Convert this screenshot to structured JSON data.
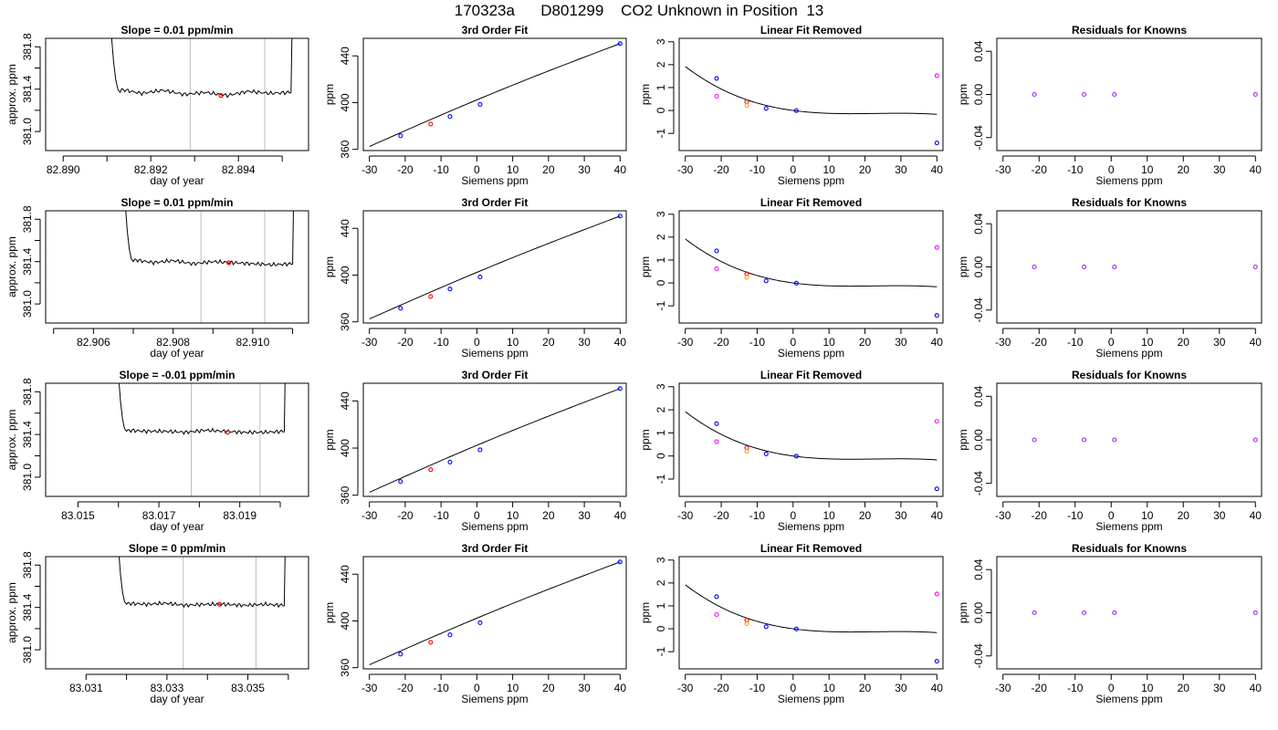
{
  "figure": {
    "title": "170323a      D801299    CO2 Unknown in Position  13"
  },
  "colors": {
    "line": "#000000",
    "vline": "#bebebe",
    "red": "#ff0000",
    "orange": "#ffa500",
    "blue": "#0000ff",
    "magenta": "#ff00ff",
    "purple": "#a020f0"
  },
  "chart_data": [
    {
      "type": "line",
      "title": "Slope =  0.01  ppm/min",
      "xlabel": "day of year",
      "ylabel": "approx. ppm",
      "xlim": [
        82.8896,
        82.8956
      ],
      "ylim": [
        380.82,
        381.88
      ],
      "xticks": [
        "82.890",
        "82.892",
        "82.894"
      ],
      "xminor": [
        82.891,
        82.893,
        82.895
      ],
      "yticks": [
        "381.0",
        "381.4",
        "381.8"
      ],
      "vlines": [
        82.8929,
        82.8946
      ],
      "trace": {
        "start": 82.8909,
        "rise_end": 82.8913,
        "fall_start": 82.8952,
        "end": 82.8953,
        "high": 381.88,
        "base": 381.37,
        "waves": [
          381.4,
          381.36,
          381.39,
          381.35,
          381.37,
          381.34,
          381.38,
          381.36,
          381.37
        ]
      },
      "marker": {
        "x": 82.8936,
        "y": 381.34
      }
    },
    {
      "type": "scatter",
      "title": "3rd Order Fit",
      "xlabel": "Siemens ppm",
      "ylabel": "ppm",
      "xlim": [
        -31.7,
        41.7
      ],
      "ylim": [
        359,
        455
      ],
      "xticks": [
        "-30",
        "-20",
        "-10",
        "0",
        "10",
        "20",
        "30",
        "40"
      ],
      "yticks": [
        "360",
        "400",
        "440"
      ],
      "curve": [
        [
          -30,
          362.5
        ],
        [
          40,
          450.5
        ]
      ],
      "points": [
        {
          "x": -21.3,
          "y": 371.6,
          "color": "blue"
        },
        {
          "x": -12.9,
          "y": 381.7,
          "color": "red"
        },
        {
          "x": -7.5,
          "y": 388.1,
          "color": "blue"
        },
        {
          "x": 0.9,
          "y": 398.5,
          "color": "blue"
        },
        {
          "x": 40.0,
          "y": 450.5,
          "color": "blue"
        }
      ]
    },
    {
      "type": "scatter",
      "title": "Linear Fit Removed",
      "xlabel": "Siemens ppm",
      "ylabel": "ppm",
      "xlim": [
        -31.7,
        41.7
      ],
      "ylim": [
        -1.75,
        3.15
      ],
      "xticks": [
        "-30",
        "-20",
        "-10",
        "0",
        "10",
        "20",
        "30",
        "40"
      ],
      "yticks": [
        "-1",
        "0",
        "1",
        "2",
        "3"
      ],
      "curve_poly": [
        -1.45e-05,
        0.001,
        -0.021,
        0.0
      ],
      "points": [
        {
          "x": -21.3,
          "y": 1.4,
          "color": "blue"
        },
        {
          "x": -21.3,
          "y": 0.62,
          "color": "magenta"
        },
        {
          "x": -12.9,
          "y": 0.38,
          "color": "red"
        },
        {
          "x": -12.9,
          "y": 0.22,
          "color": "orange"
        },
        {
          "x": -7.5,
          "y": 0.09,
          "color": "blue"
        },
        {
          "x": 0.9,
          "y": -0.01,
          "color": "blue"
        },
        {
          "x": 40.0,
          "y": 1.52,
          "color": "magenta"
        },
        {
          "x": 40.0,
          "y": -1.42,
          "color": "blue"
        }
      ]
    },
    {
      "type": "scatter",
      "title": "Residuals for Knowns",
      "xlabel": "Siemens ppm",
      "ylabel": "ppm",
      "xlim": [
        -31.7,
        41.7
      ],
      "ylim": [
        -0.052,
        0.052
      ],
      "xticks": [
        "-30",
        "-20",
        "-10",
        "0",
        "10",
        "20",
        "30",
        "40"
      ],
      "yticks": [
        "-0.04",
        "0.00",
        "0.04"
      ],
      "points": [
        {
          "x": -21.3,
          "y": 0.0,
          "color": "purple"
        },
        {
          "x": -7.5,
          "y": 0.0,
          "color": "purple"
        },
        {
          "x": 0.9,
          "y": 0.0,
          "color": "purple"
        },
        {
          "x": 40.0,
          "y": 0.0,
          "color": "purple"
        }
      ]
    },
    {
      "type": "line",
      "title": "Slope =  0.01  ppm/min",
      "xlabel": "day of year",
      "ylabel": "approx. ppm",
      "xlim": [
        82.9048,
        82.9114
      ],
      "ylim": [
        380.82,
        381.88
      ],
      "xticks": [
        "82.906",
        "82.908",
        "82.910"
      ],
      "xminor": [
        82.905,
        82.907,
        82.909,
        82.911
      ],
      "yticks": [
        "381.0",
        "381.4",
        "381.8"
      ],
      "vlines": [
        82.9087,
        82.9103
      ],
      "trace": {
        "start": 82.9066,
        "rise_end": 82.907,
        "fall_start": 82.911,
        "end": 82.9111,
        "high": 381.88,
        "base": 381.4,
        "waves": [
          381.42,
          381.39,
          381.41,
          381.38,
          381.4,
          381.39,
          381.38,
          381.37,
          381.38
        ]
      },
      "marker": {
        "x": 82.9094,
        "y": 381.39
      }
    },
    {
      "type": "scatter",
      "title": "3rd Order Fit",
      "xlabel": "Siemens ppm",
      "ylabel": "ppm",
      "xlim": [
        -31.7,
        41.7
      ],
      "ylim": [
        359,
        455
      ],
      "xticks": [
        "-30",
        "-20",
        "-10",
        "0",
        "10",
        "20",
        "30",
        "40"
      ],
      "yticks": [
        "360",
        "400",
        "440"
      ],
      "curve": [
        [
          -30,
          362.5
        ],
        [
          40,
          450.5
        ]
      ],
      "points": [
        {
          "x": -21.3,
          "y": 371.6,
          "color": "blue"
        },
        {
          "x": -12.9,
          "y": 381.7,
          "color": "red"
        },
        {
          "x": -7.5,
          "y": 388.1,
          "color": "blue"
        },
        {
          "x": 0.9,
          "y": 398.5,
          "color": "blue"
        },
        {
          "x": 40.0,
          "y": 450.5,
          "color": "blue"
        }
      ]
    },
    {
      "type": "scatter",
      "title": "Linear Fit Removed",
      "xlabel": "Siemens ppm",
      "ylabel": "ppm",
      "xlim": [
        -31.7,
        41.7
      ],
      "ylim": [
        -1.75,
        3.15
      ],
      "xticks": [
        "-30",
        "-20",
        "-10",
        "0",
        "10",
        "20",
        "30",
        "40"
      ],
      "yticks": [
        "-1",
        "0",
        "1",
        "2",
        "3"
      ],
      "curve_poly": [
        -1.45e-05,
        0.001,
        -0.021,
        0.0
      ],
      "points": [
        {
          "x": -21.3,
          "y": 1.4,
          "color": "blue"
        },
        {
          "x": -21.3,
          "y": 0.62,
          "color": "magenta"
        },
        {
          "x": -12.9,
          "y": 0.4,
          "color": "red"
        },
        {
          "x": -12.9,
          "y": 0.24,
          "color": "orange"
        },
        {
          "x": -7.5,
          "y": 0.09,
          "color": "blue"
        },
        {
          "x": 0.9,
          "y": -0.01,
          "color": "blue"
        },
        {
          "x": 40.0,
          "y": 1.55,
          "color": "magenta"
        },
        {
          "x": 40.0,
          "y": -1.42,
          "color": "blue"
        }
      ]
    },
    {
      "type": "scatter",
      "title": "Residuals for Knowns",
      "xlabel": "Siemens ppm",
      "ylabel": "ppm",
      "xlim": [
        -31.7,
        41.7
      ],
      "ylim": [
        -0.052,
        0.052
      ],
      "xticks": [
        "-30",
        "-20",
        "-10",
        "0",
        "10",
        "20",
        "30",
        "40"
      ],
      "yticks": [
        "-0.04",
        "0.00",
        "0.04"
      ],
      "points": [
        {
          "x": -21.3,
          "y": 0.0,
          "color": "purple"
        },
        {
          "x": -7.5,
          "y": 0.0,
          "color": "purple"
        },
        {
          "x": 0.9,
          "y": 0.0,
          "color": "purple"
        },
        {
          "x": 40.0,
          "y": 0.0,
          "color": "purple"
        }
      ]
    },
    {
      "type": "line",
      "title": "Slope =  -0.01  ppm/min",
      "xlabel": "day of year",
      "ylabel": "approx. ppm",
      "xlim": [
        83.0142,
        83.0207
      ],
      "ylim": [
        380.82,
        381.88
      ],
      "xticks": [
        "83.015",
        "83.017",
        "83.019"
      ],
      "xminor": [
        83.016,
        83.018,
        83.02
      ],
      "yticks": [
        "381.0",
        "381.4",
        "381.8"
      ],
      "vlines": [
        83.0178,
        83.0195
      ],
      "trace": {
        "start": 83.0158,
        "rise_end": 83.0162,
        "fall_start": 83.0201,
        "end": 83.0202,
        "high": 381.88,
        "base": 381.43,
        "waves": [
          381.44,
          381.43,
          381.43,
          381.42,
          381.44,
          381.43,
          381.42,
          381.42,
          381.43
        ]
      },
      "marker": {
        "x": 83.0187,
        "y": 381.42
      }
    },
    {
      "type": "scatter",
      "title": "3rd Order Fit",
      "xlabel": "Siemens ppm",
      "ylabel": "ppm",
      "xlim": [
        -31.7,
        41.7
      ],
      "ylim": [
        359,
        455
      ],
      "xticks": [
        "-30",
        "-20",
        "-10",
        "0",
        "10",
        "20",
        "30",
        "40"
      ],
      "yticks": [
        "360",
        "400",
        "440"
      ],
      "curve": [
        [
          -30,
          362.5
        ],
        [
          40,
          450.5
        ]
      ],
      "points": [
        {
          "x": -21.3,
          "y": 371.6,
          "color": "blue"
        },
        {
          "x": -12.9,
          "y": 381.7,
          "color": "red"
        },
        {
          "x": -7.5,
          "y": 388.1,
          "color": "blue"
        },
        {
          "x": 0.9,
          "y": 398.5,
          "color": "blue"
        },
        {
          "x": 40.0,
          "y": 450.5,
          "color": "blue"
        }
      ]
    },
    {
      "type": "scatter",
      "title": "Linear Fit Removed",
      "xlabel": "Siemens ppm",
      "ylabel": "ppm",
      "xlim": [
        -31.7,
        41.7
      ],
      "ylim": [
        -1.75,
        3.15
      ],
      "xticks": [
        "-30",
        "-20",
        "-10",
        "0",
        "10",
        "20",
        "30",
        "40"
      ],
      "yticks": [
        "-1",
        "0",
        "1",
        "2",
        "3"
      ],
      "curve_poly": [
        -1.45e-05,
        0.001,
        -0.021,
        0.0
      ],
      "points": [
        {
          "x": -21.3,
          "y": 1.4,
          "color": "blue"
        },
        {
          "x": -21.3,
          "y": 0.62,
          "color": "magenta"
        },
        {
          "x": -12.9,
          "y": 0.36,
          "color": "red"
        },
        {
          "x": -12.9,
          "y": 0.2,
          "color": "orange"
        },
        {
          "x": -7.5,
          "y": 0.09,
          "color": "blue"
        },
        {
          "x": 0.9,
          "y": -0.01,
          "color": "blue"
        },
        {
          "x": 40.0,
          "y": 1.5,
          "color": "magenta"
        },
        {
          "x": 40.0,
          "y": -1.42,
          "color": "blue"
        }
      ]
    },
    {
      "type": "scatter",
      "title": "Residuals for Knowns",
      "xlabel": "Siemens ppm",
      "ylabel": "ppm",
      "xlim": [
        -31.7,
        41.7
      ],
      "ylim": [
        -0.052,
        0.052
      ],
      "xticks": [
        "-30",
        "-20",
        "-10",
        "0",
        "10",
        "20",
        "30",
        "40"
      ],
      "yticks": [
        "-0.04",
        "0.00",
        "0.04"
      ],
      "points": [
        {
          "x": -21.3,
          "y": 0.0,
          "color": "purple"
        },
        {
          "x": -7.5,
          "y": 0.0,
          "color": "purple"
        },
        {
          "x": 0.9,
          "y": 0.0,
          "color": "purple"
        },
        {
          "x": 40.0,
          "y": 0.0,
          "color": "purple"
        }
      ]
    },
    {
      "type": "line",
      "title": "Slope =  0  ppm/min",
      "xlabel": "day of year",
      "ylabel": "approx. ppm",
      "xlim": [
        83.03,
        83.0365
      ],
      "ylim": [
        380.82,
        381.88
      ],
      "xticks": [
        "83.031",
        "83.033",
        "83.035"
      ],
      "xminor": [
        83.032,
        83.034,
        83.036
      ],
      "yticks": [
        "381.0",
        "381.4",
        "381.8"
      ],
      "vlines": [
        83.0334,
        83.0352
      ],
      "trace": {
        "start": 83.0316,
        "rise_end": 83.032,
        "fall_start": 83.0359,
        "end": 83.036,
        "high": 381.88,
        "base": 381.43,
        "waves": [
          381.44,
          381.43,
          381.44,
          381.42,
          381.43,
          381.43,
          381.42,
          381.43,
          381.42
        ]
      },
      "marker": {
        "x": 83.0343,
        "y": 381.43
      }
    },
    {
      "type": "scatter",
      "title": "3rd Order Fit",
      "xlabel": "Siemens ppm",
      "ylabel": "ppm",
      "xlim": [
        -31.7,
        41.7
      ],
      "ylim": [
        359,
        455
      ],
      "xticks": [
        "-30",
        "-20",
        "-10",
        "0",
        "10",
        "20",
        "30",
        "40"
      ],
      "yticks": [
        "360",
        "400",
        "440"
      ],
      "curve": [
        [
          -30,
          362.5
        ],
        [
          40,
          450.5
        ]
      ],
      "points": [
        {
          "x": -21.3,
          "y": 371.6,
          "color": "blue"
        },
        {
          "x": -12.9,
          "y": 381.7,
          "color": "red"
        },
        {
          "x": -7.5,
          "y": 388.1,
          "color": "blue"
        },
        {
          "x": 0.9,
          "y": 398.5,
          "color": "blue"
        },
        {
          "x": 40.0,
          "y": 450.5,
          "color": "blue"
        }
      ]
    },
    {
      "type": "scatter",
      "title": "Linear Fit Removed",
      "xlabel": "Siemens ppm",
      "ylabel": "ppm",
      "xlim": [
        -31.7,
        41.7
      ],
      "ylim": [
        -1.75,
        3.15
      ],
      "xticks": [
        "-30",
        "-20",
        "-10",
        "0",
        "10",
        "20",
        "30",
        "40"
      ],
      "yticks": [
        "-1",
        "0",
        "1",
        "2",
        "3"
      ],
      "curve_poly": [
        -1.45e-05,
        0.001,
        -0.021,
        0.0
      ],
      "points": [
        {
          "x": -21.3,
          "y": 1.4,
          "color": "blue"
        },
        {
          "x": -21.3,
          "y": 0.62,
          "color": "magenta"
        },
        {
          "x": -12.9,
          "y": 0.38,
          "color": "red"
        },
        {
          "x": -12.9,
          "y": 0.22,
          "color": "orange"
        },
        {
          "x": -7.5,
          "y": 0.09,
          "color": "blue"
        },
        {
          "x": 0.9,
          "y": -0.01,
          "color": "blue"
        },
        {
          "x": 40.0,
          "y": 1.52,
          "color": "magenta"
        },
        {
          "x": 40.0,
          "y": -1.42,
          "color": "blue"
        }
      ]
    },
    {
      "type": "scatter",
      "title": "Residuals for Knowns",
      "xlabel": "Siemens ppm",
      "ylabel": "ppm",
      "xlim": [
        -31.7,
        41.7
      ],
      "ylim": [
        -0.052,
        0.052
      ],
      "xticks": [
        "-30",
        "-20",
        "-10",
        "0",
        "10",
        "20",
        "30",
        "40"
      ],
      "yticks": [
        "-0.04",
        "0.00",
        "0.04"
      ],
      "points": [
        {
          "x": -21.3,
          "y": 0.0,
          "color": "purple"
        },
        {
          "x": -7.5,
          "y": 0.0,
          "color": "purple"
        },
        {
          "x": 0.9,
          "y": 0.0,
          "color": "purple"
        },
        {
          "x": 40.0,
          "y": 0.0,
          "color": "purple"
        }
      ]
    }
  ]
}
